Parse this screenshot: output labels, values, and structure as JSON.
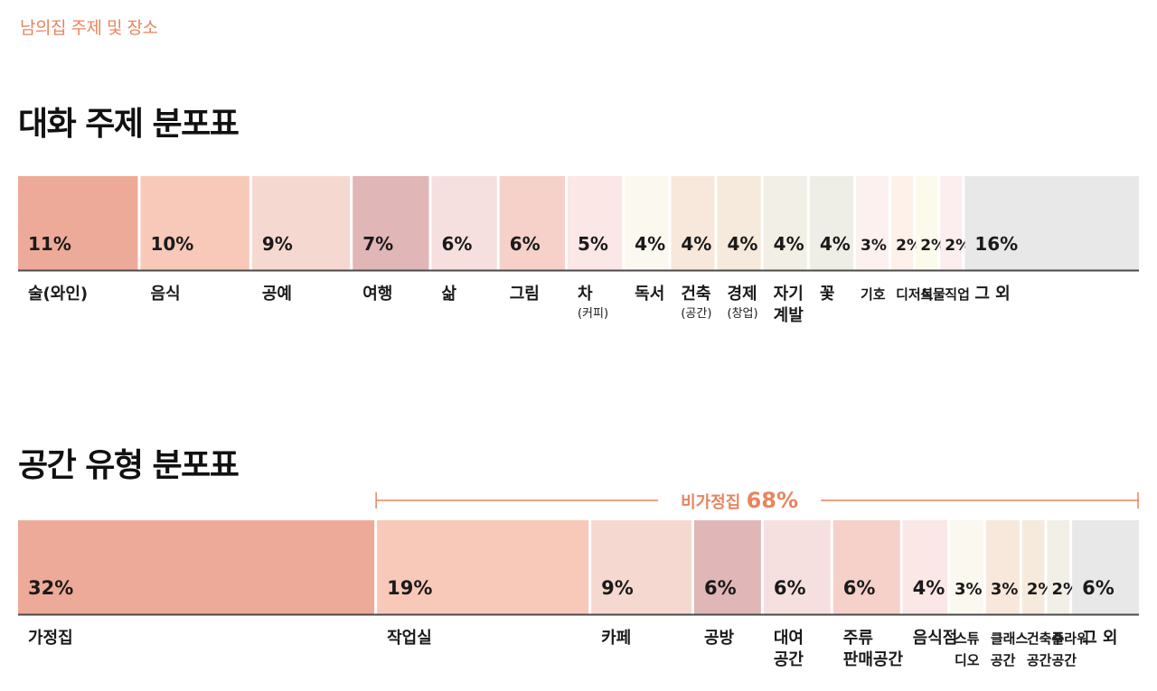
{
  "header": {
    "kicker": "남의집 주제 및 장소"
  },
  "chart_data": [
    {
      "type": "bar",
      "title": "대화 주제 분포표",
      "categories": [
        "술(와인)",
        "음식",
        "공예",
        "여행",
        "삶",
        "그림",
        "차",
        "독서",
        "건축",
        "경제",
        "자기계발",
        "꽃",
        "기호",
        "디저트",
        "식물",
        "직업",
        "그 외"
      ],
      "category_lines": [
        [
          "술(와인)"
        ],
        [
          "음식"
        ],
        [
          "공예"
        ],
        [
          "여행"
        ],
        [
          "삶"
        ],
        [
          "그림"
        ],
        [
          "차",
          "(커피)"
        ],
        [
          "독서"
        ],
        [
          "건축",
          "(공간)"
        ],
        [
          "경제",
          "(창업)"
        ],
        [
          "자기",
          "계발"
        ],
        [
          "꽃"
        ],
        [
          "기호"
        ],
        [
          "디저트"
        ],
        [
          "식물"
        ],
        [
          "직업"
        ],
        [
          "그 외"
        ]
      ],
      "values": [
        11,
        10,
        9,
        7,
        6,
        6,
        5,
        4,
        4,
        4,
        4,
        4,
        3,
        2,
        2,
        2,
        16
      ],
      "value_labels": [
        "11%",
        "10%",
        "9%",
        "7%",
        "6%",
        "6%",
        "5%",
        "4%",
        "4%",
        "4%",
        "4%",
        "4%",
        "3%",
        "2%",
        "2%",
        "2%",
        "16%"
      ],
      "colors": [
        "#eeaa98",
        "#f8c9b8",
        "#f5d9d0",
        "#e0b6b7",
        "#f6e0df",
        "#f5d1ca",
        "#fbe7e6",
        "#faf8ef",
        "#f8e8dc",
        "#f5eadb",
        "#f2efe6",
        "#efeee6",
        "#fcf1ef",
        "#fdf1ea",
        "#fbfaeb",
        "#fcedee",
        "#e8e8e8"
      ]
    },
    {
      "type": "bar",
      "title": "공간 유형 분포표",
      "categories": [
        "가정집",
        "작업실",
        "카페",
        "공방",
        "대여공간",
        "주류판매공간",
        "음식점",
        "스튜디오",
        "클래스공간",
        "건축주공간",
        "플라워공간",
        "그 외"
      ],
      "category_lines": [
        [
          "가정집"
        ],
        [
          "작업실"
        ],
        [
          "카페"
        ],
        [
          "공방"
        ],
        [
          "대여",
          "공간"
        ],
        [
          "주류",
          "판매공간"
        ],
        [
          "음식점"
        ],
        [
          "스튜",
          "디오"
        ],
        [
          "클래스",
          "공간"
        ],
        [
          "건축주",
          "공간"
        ],
        [
          "플라워",
          "공간"
        ],
        [
          "그 외"
        ]
      ],
      "values": [
        32,
        19,
        9,
        6,
        6,
        6,
        4,
        3,
        3,
        2,
        2,
        6
      ],
      "value_labels": [
        "32%",
        "19%",
        "9%",
        "6%",
        "6%",
        "6%",
        "4%",
        "3%",
        "3%",
        "2%",
        "2%",
        "6%"
      ],
      "colors": [
        "#eeaa98",
        "#f8c9b8",
        "#f5d9d0",
        "#e0b6b7",
        "#f6e0df",
        "#f5d1ca",
        "#fbe7e6",
        "#faf8ef",
        "#f8e8dc",
        "#f5eadb",
        "#f2efe6",
        "#e8e8e8"
      ],
      "annotation": {
        "label": "비가정집",
        "value": "68%"
      }
    }
  ]
}
